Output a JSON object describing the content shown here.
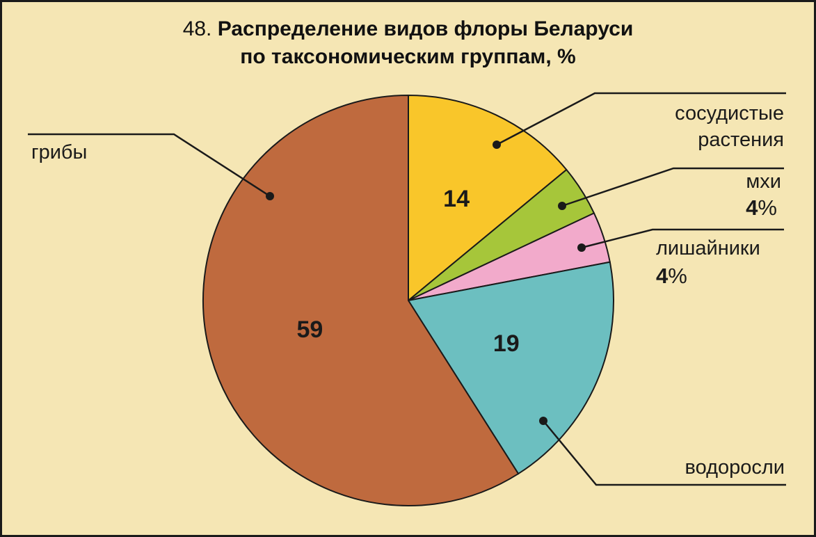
{
  "title": {
    "number": "48.",
    "line1": "Распределение видов флоры Беларуси",
    "line2": "по таксономическим группам, %"
  },
  "chart_data": {
    "type": "pie",
    "title": "48. Распределение видов флоры Беларуси по таксономическим группам, %",
    "unit": "%",
    "slices": [
      {
        "name_lines": [
          "сосудистые",
          "растения"
        ],
        "value": 14,
        "inside_label": "14",
        "side_label": "",
        "color": "#f9c62a"
      },
      {
        "name_lines": [
          "мхи"
        ],
        "value": 4,
        "inside_label": "",
        "side_label": "4%",
        "color": "#a6c63a"
      },
      {
        "name_lines": [
          "лишайники"
        ],
        "value": 4,
        "inside_label": "",
        "side_label": "4%",
        "color": "#f2aacb"
      },
      {
        "name_lines": [
          "водоросли"
        ],
        "value": 19,
        "inside_label": "19",
        "side_label": "",
        "color": "#6cbfc0"
      },
      {
        "name_lines": [
          "грибы"
        ],
        "value": 59,
        "inside_label": "59",
        "side_label": "",
        "color": "#bf6a3e"
      }
    ]
  }
}
